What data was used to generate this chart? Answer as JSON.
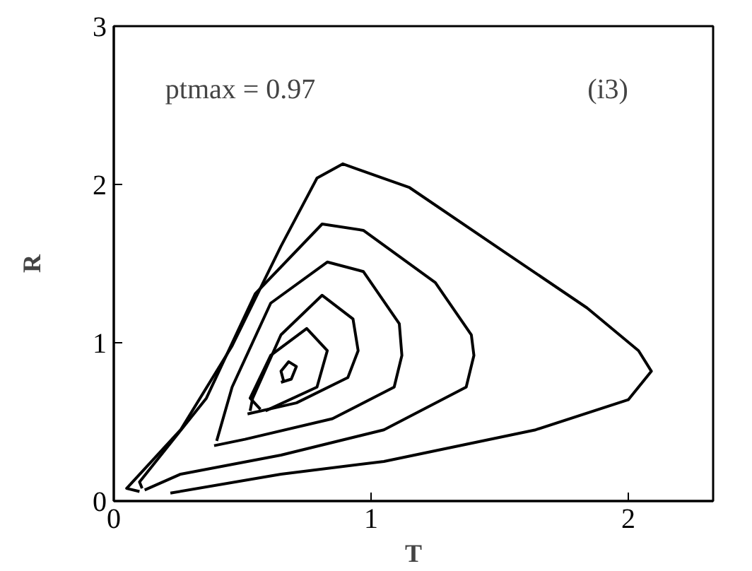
{
  "chart_data": {
    "type": "line",
    "xlabel": "T",
    "ylabel": "R",
    "annotations": [
      "ptmax = 0.97",
      "(i3)"
    ],
    "xlim": [
      0,
      2.33
    ],
    "ylim": [
      0,
      3
    ],
    "xticks": [
      0,
      1,
      2
    ],
    "yticks": [
      0,
      1,
      2,
      3
    ],
    "grid": false,
    "marker": "none",
    "line_style": "solid",
    "series": [
      {
        "color": "#000000",
        "x": [
          0.22,
          0.65,
          1.05,
          1.64,
          2.0,
          2.09,
          2.04,
          1.84,
          1.54,
          1.15,
          0.89,
          0.79,
          0.65,
          0.46,
          0.26,
          0.05,
          0.1
        ],
        "values": [
          0.05,
          0.17,
          0.25,
          0.45,
          0.64,
          0.82,
          0.95,
          1.22,
          1.55,
          1.98,
          2.13,
          2.04,
          1.61,
          0.98,
          0.45,
          0.08,
          0.06
        ]
      },
      {
        "color": "#000000",
        "x": [
          0.12,
          0.26,
          0.65,
          1.05,
          1.37,
          1.4,
          1.39,
          1.25,
          0.97,
          0.81,
          0.55,
          0.36,
          0.1,
          0.11
        ],
        "values": [
          0.07,
          0.17,
          0.29,
          0.45,
          0.72,
          0.92,
          1.05,
          1.38,
          1.71,
          1.75,
          1.31,
          0.65,
          0.12,
          0.08
        ]
      },
      {
        "color": "#000000",
        "x": [
          0.39,
          0.51,
          0.85,
          1.09,
          1.12,
          1.11,
          0.97,
          0.83,
          0.61,
          0.46,
          0.4
        ],
        "values": [
          0.35,
          0.39,
          0.52,
          0.72,
          0.92,
          1.12,
          1.45,
          1.51,
          1.25,
          0.72,
          0.38
        ]
      },
      {
        "color": "#000000",
        "x": [
          0.52,
          0.71,
          0.91,
          0.95,
          0.93,
          0.81,
          0.65,
          0.54,
          0.53
        ],
        "values": [
          0.55,
          0.62,
          0.78,
          0.95,
          1.15,
          1.3,
          1.05,
          0.65,
          0.57
        ]
      },
      {
        "color": "#000000",
        "x": [
          0.59,
          0.79,
          0.83,
          0.75,
          0.61,
          0.53,
          0.57
        ],
        "values": [
          0.57,
          0.72,
          0.95,
          1.09,
          0.92,
          0.65,
          0.58
        ]
      },
      {
        "color": "#000000",
        "x": [
          0.65,
          0.69,
          0.71,
          0.68,
          0.65,
          0.66
        ],
        "values": [
          0.75,
          0.77,
          0.85,
          0.88,
          0.82,
          0.76
        ]
      }
    ]
  }
}
